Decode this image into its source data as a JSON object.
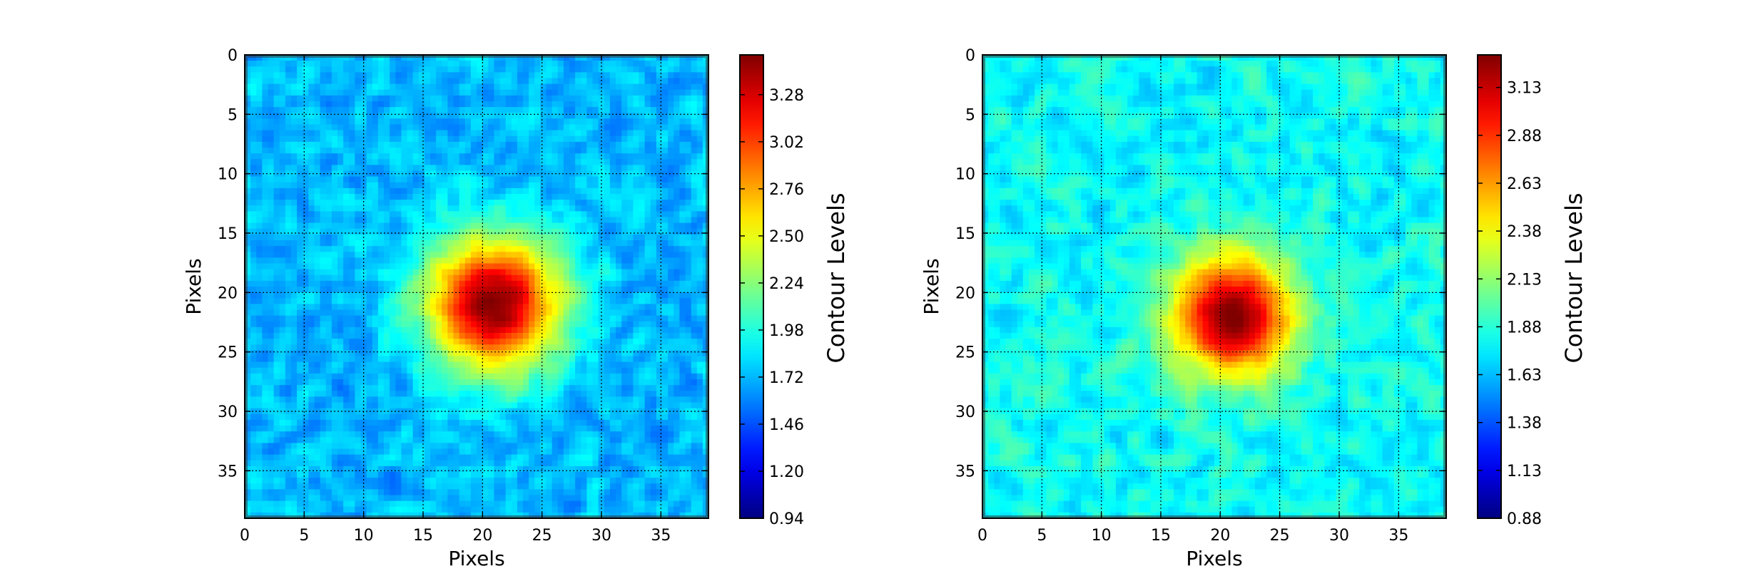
{
  "chart_data": [
    {
      "type": "heatmap",
      "xlabel": "Pixels",
      "ylabel": "Pixels",
      "x_ticks": [
        0,
        5,
        10,
        15,
        20,
        25,
        30,
        35
      ],
      "y_ticks": [
        0,
        5,
        10,
        15,
        20,
        25,
        30,
        35
      ],
      "xlim": [
        0,
        39
      ],
      "ylim": [
        39,
        0
      ],
      "y_inverted": true,
      "grid": true,
      "colormap": "jet",
      "colorbar": {
        "label": "Contour Levels",
        "min": 0.94,
        "max": 3.5,
        "ticks": [
          0.94,
          1.2,
          1.46,
          1.72,
          1.98,
          2.24,
          2.5,
          2.76,
          3.02,
          3.28
        ],
        "tick_labels": [
          "0.94",
          "1.20",
          "1.46",
          "1.72",
          "1.98",
          "2.24",
          "2.50",
          "2.76",
          "3.02",
          "3.28"
        ]
      },
      "background_level": 1.72,
      "noise_amplitude": 0.22,
      "peak": {
        "x": 21,
        "y": 21,
        "value": 3.5,
        "sigma": 4.0
      }
    },
    {
      "type": "heatmap",
      "xlabel": "Pixels",
      "ylabel": "Pixels",
      "x_ticks": [
        0,
        5,
        10,
        15,
        20,
        25,
        30,
        35
      ],
      "y_ticks": [
        0,
        5,
        10,
        15,
        20,
        25,
        30,
        35
      ],
      "xlim": [
        0,
        39
      ],
      "ylim": [
        39,
        0
      ],
      "y_inverted": true,
      "grid": true,
      "colormap": "jet",
      "colorbar": {
        "label": "Contour Levels",
        "min": 0.88,
        "max": 3.3,
        "ticks": [
          0.88,
          1.13,
          1.38,
          1.63,
          1.88,
          2.13,
          2.38,
          2.63,
          2.88,
          3.13
        ],
        "tick_labels": [
          "0.88",
          "1.13",
          "1.38",
          "1.63",
          "1.88",
          "2.13",
          "2.38",
          "2.63",
          "2.88",
          "3.13"
        ]
      },
      "background_level": 1.8,
      "noise_amplitude": 0.2,
      "peak": {
        "x": 21,
        "y": 22,
        "value": 3.3,
        "sigma": 3.6
      }
    }
  ]
}
